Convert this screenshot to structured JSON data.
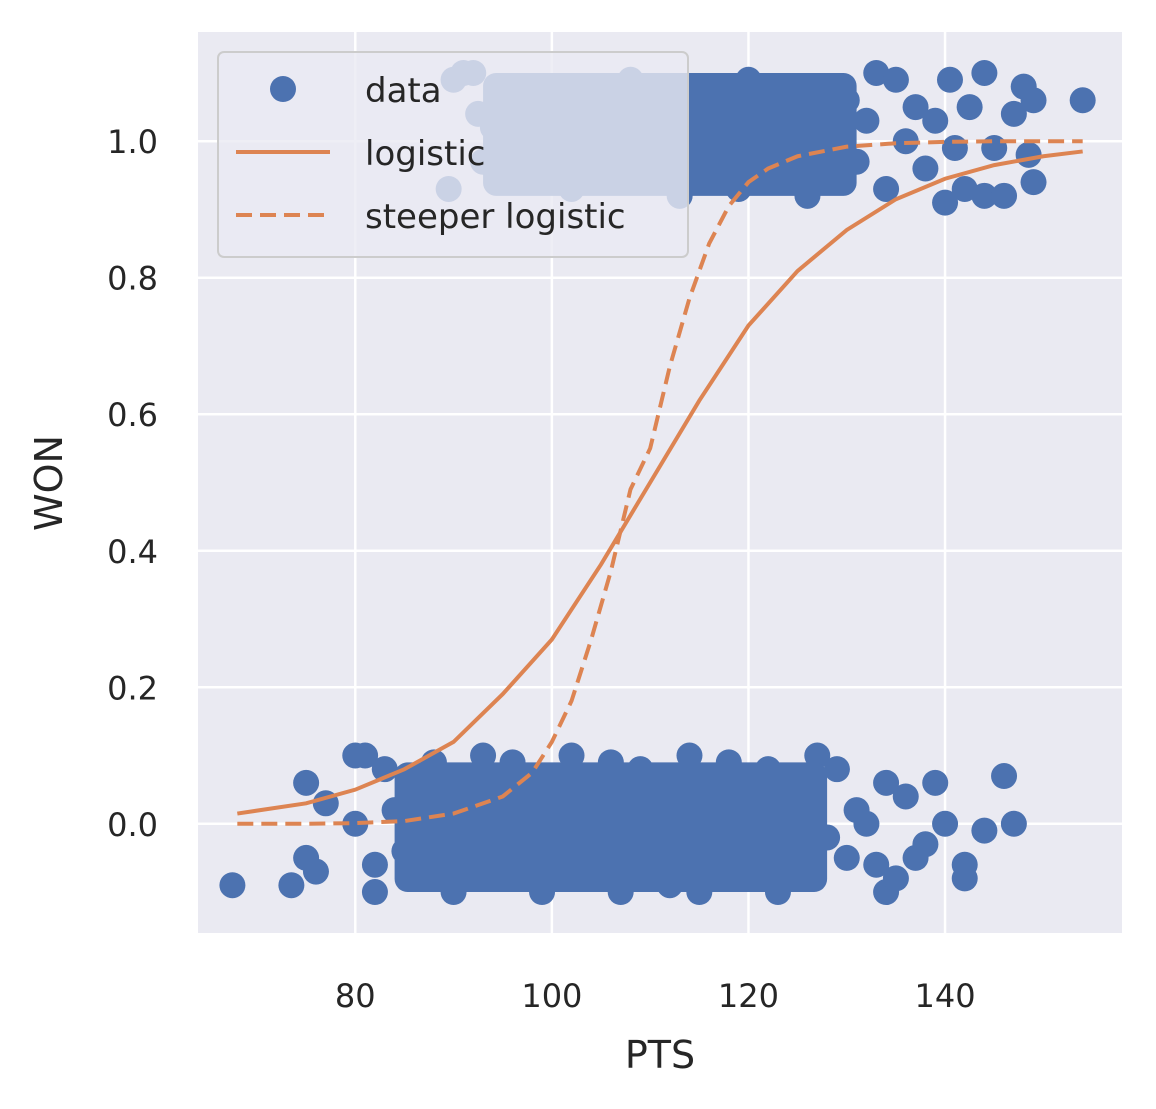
{
  "chart_data": {
    "type": "scatter",
    "xlabel": "PTS",
    "ylabel": "WON",
    "xlim": [
      64,
      158
    ],
    "ylim": [
      -0.16,
      1.16
    ],
    "xticks": [
      80,
      100,
      120,
      140
    ],
    "yticks": [
      0.0,
      0.2,
      0.4,
      0.6,
      0.8,
      1.0
    ],
    "xtick_labels": [
      "80",
      "100",
      "120",
      "140"
    ],
    "ytick_labels": [
      "0.0",
      "0.2",
      "0.4",
      "0.6",
      "0.8",
      "1.0"
    ],
    "grid": true,
    "legend_position": "upper-left",
    "colors": {
      "background": "#eaeaf2",
      "grid": "#ffffff",
      "data": "#4c72b0",
      "line": "#dd8452"
    },
    "series": [
      {
        "name": "data",
        "kind": "scatter",
        "note_jitter": "y values jittered around 0 and 1",
        "points_won": [
          [
            89.5,
            0.93
          ],
          [
            90,
            1.09
          ],
          [
            91,
            1.1
          ],
          [
            92,
            1.1
          ],
          [
            92.5,
            1.04
          ],
          [
            93,
            0.97
          ],
          [
            94,
            1.02
          ],
          [
            95,
            1.07
          ],
          [
            96,
            0.99
          ],
          [
            97,
            1.05
          ],
          [
            98,
            0.95
          ],
          [
            99,
            1.08
          ],
          [
            100,
            1.02
          ],
          [
            101,
            0.96
          ],
          [
            102,
            1.06
          ],
          [
            103,
            1.0
          ],
          [
            104,
            0.94
          ],
          [
            105,
            1.08
          ],
          [
            106,
            1.03
          ],
          [
            107,
            0.97
          ],
          [
            108,
            1.09
          ],
          [
            109,
            1.01
          ],
          [
            110,
            0.95
          ],
          [
            111,
            1.06
          ],
          [
            112,
            1.0
          ],
          [
            113,
            0.92
          ],
          [
            114,
            1.08
          ],
          [
            115,
            1.03
          ],
          [
            116,
            0.96
          ],
          [
            117,
            1.07
          ],
          [
            118,
            1.01
          ],
          [
            119,
            0.93
          ],
          [
            120,
            1.09
          ],
          [
            121,
            1.02
          ],
          [
            122,
            0.95
          ],
          [
            123,
            1.06
          ],
          [
            124,
            0.98
          ],
          [
            125,
            1.04
          ],
          [
            126,
            0.92
          ],
          [
            127,
            1.08
          ],
          [
            128,
            1.0
          ],
          [
            129,
            0.95
          ],
          [
            130,
            1.06
          ],
          [
            131,
            0.97
          ],
          [
            132,
            1.03
          ],
          [
            133,
            1.1
          ],
          [
            134,
            0.93
          ],
          [
            135,
            1.09
          ],
          [
            136,
            1.0
          ],
          [
            137,
            1.05
          ],
          [
            138,
            0.96
          ],
          [
            139,
            1.03
          ],
          [
            140,
            0.91
          ],
          [
            140.5,
            1.09
          ],
          [
            141,
            0.99
          ],
          [
            142,
            0.93
          ],
          [
            142.5,
            1.05
          ],
          [
            144,
            1.1
          ],
          [
            144,
            0.92
          ],
          [
            145,
            0.99
          ],
          [
            146,
            0.92
          ],
          [
            147,
            1.04
          ],
          [
            148,
            1.08
          ],
          [
            148.5,
            0.98
          ],
          [
            149,
            1.06
          ],
          [
            149,
            0.94
          ],
          [
            154,
            1.06
          ],
          [
            100,
            0.99
          ],
          [
            104,
            1.03
          ],
          [
            110,
            1.04
          ],
          [
            115,
            1.0
          ],
          [
            118,
            0.97
          ],
          [
            122,
            1.03
          ],
          [
            125,
            0.97
          ],
          [
            112,
            1.07
          ],
          [
            107,
            1.01
          ],
          [
            96,
            1.06
          ],
          [
            102,
            0.93
          ]
        ],
        "points_lost": [
          [
            67.5,
            -0.09
          ],
          [
            73.5,
            -0.09
          ],
          [
            75,
            0.06
          ],
          [
            75,
            -0.05
          ],
          [
            76,
            -0.07
          ],
          [
            77,
            0.03
          ],
          [
            80,
            0.1
          ],
          [
            80,
            0.0
          ],
          [
            81,
            0.1
          ],
          [
            82,
            -0.1
          ],
          [
            82,
            -0.06
          ],
          [
            83,
            0.08
          ],
          [
            84,
            0.02
          ],
          [
            85,
            -0.04
          ],
          [
            86,
            0.06
          ],
          [
            87,
            -0.08
          ],
          [
            88,
            0.09
          ],
          [
            89,
            0.0
          ],
          [
            90,
            -0.1
          ],
          [
            91,
            0.05
          ],
          [
            92,
            -0.03
          ],
          [
            93,
            0.1
          ],
          [
            94,
            -0.07
          ],
          [
            95,
            0.02
          ],
          [
            96,
            0.09
          ],
          [
            97,
            -0.05
          ],
          [
            98,
            0.04
          ],
          [
            99,
            -0.1
          ],
          [
            100,
            0.07
          ],
          [
            101,
            -0.02
          ],
          [
            102,
            0.1
          ],
          [
            103,
            -0.08
          ],
          [
            104,
            0.03
          ],
          [
            105,
            -0.05
          ],
          [
            106,
            0.09
          ],
          [
            107,
            -0.1
          ],
          [
            108,
            0.01
          ],
          [
            109,
            0.08
          ],
          [
            110,
            -0.06
          ],
          [
            111,
            0.05
          ],
          [
            112,
            -0.09
          ],
          [
            113,
            0.02
          ],
          [
            114,
            0.1
          ],
          [
            115,
            -0.1
          ],
          [
            116,
            0.04
          ],
          [
            117,
            -0.03
          ],
          [
            118,
            0.09
          ],
          [
            119,
            -0.07
          ],
          [
            120,
            0.03
          ],
          [
            121,
            -0.05
          ],
          [
            122,
            0.08
          ],
          [
            123,
            -0.1
          ],
          [
            124,
            0.02
          ],
          [
            125,
            0.05
          ],
          [
            126,
            -0.08
          ],
          [
            127,
            0.1
          ],
          [
            128,
            -0.02
          ],
          [
            129,
            0.08
          ],
          [
            130,
            -0.05
          ],
          [
            131,
            0.02
          ],
          [
            132,
            0.0
          ],
          [
            133,
            -0.06
          ],
          [
            134,
            0.06
          ],
          [
            134,
            -0.1
          ],
          [
            135,
            -0.08
          ],
          [
            136,
            0.04
          ],
          [
            137,
            -0.05
          ],
          [
            138,
            -0.03
          ],
          [
            139,
            0.06
          ],
          [
            140,
            0.0
          ],
          [
            142,
            -0.06
          ],
          [
            142,
            -0.08
          ],
          [
            144,
            -0.01
          ],
          [
            146,
            0.07
          ],
          [
            147,
            0.0
          ],
          [
            100,
            0.0
          ],
          [
            105,
            0.02
          ],
          [
            110,
            0.0
          ],
          [
            115,
            0.03
          ],
          [
            108,
            -0.04
          ],
          [
            103,
            0.05
          ],
          [
            118,
            0.0
          ],
          [
            121,
            0.04
          ],
          [
            95,
            -0.02
          ],
          [
            112,
            0.06
          ],
          [
            125,
            -0.03
          ]
        ]
      },
      {
        "name": "logistic",
        "kind": "line",
        "style": "solid",
        "x": [
          68,
          75,
          80,
          85,
          90,
          95,
          100,
          105,
          110,
          115,
          120,
          125,
          130,
          135,
          140,
          145,
          150,
          154
        ],
        "y": [
          0.015,
          0.03,
          0.05,
          0.08,
          0.12,
          0.19,
          0.27,
          0.38,
          0.5,
          0.62,
          0.73,
          0.81,
          0.87,
          0.915,
          0.945,
          0.965,
          0.978,
          0.985
        ]
      },
      {
        "name": "steeper logistic",
        "kind": "line",
        "style": "dashed",
        "x": [
          68,
          75,
          80,
          85,
          90,
          95,
          98,
          100,
          102,
          104,
          106,
          108,
          110,
          112,
          114,
          116,
          118,
          120,
          122,
          125,
          130,
          135,
          140,
          145,
          150,
          154
        ],
        "y": [
          0.0,
          0.0,
          0.001,
          0.004,
          0.015,
          0.04,
          0.075,
          0.12,
          0.18,
          0.27,
          0.37,
          0.49,
          0.55,
          0.67,
          0.77,
          0.85,
          0.905,
          0.94,
          0.96,
          0.978,
          0.992,
          0.997,
          0.999,
          1.0,
          1.0,
          1.0
        ]
      }
    ]
  }
}
